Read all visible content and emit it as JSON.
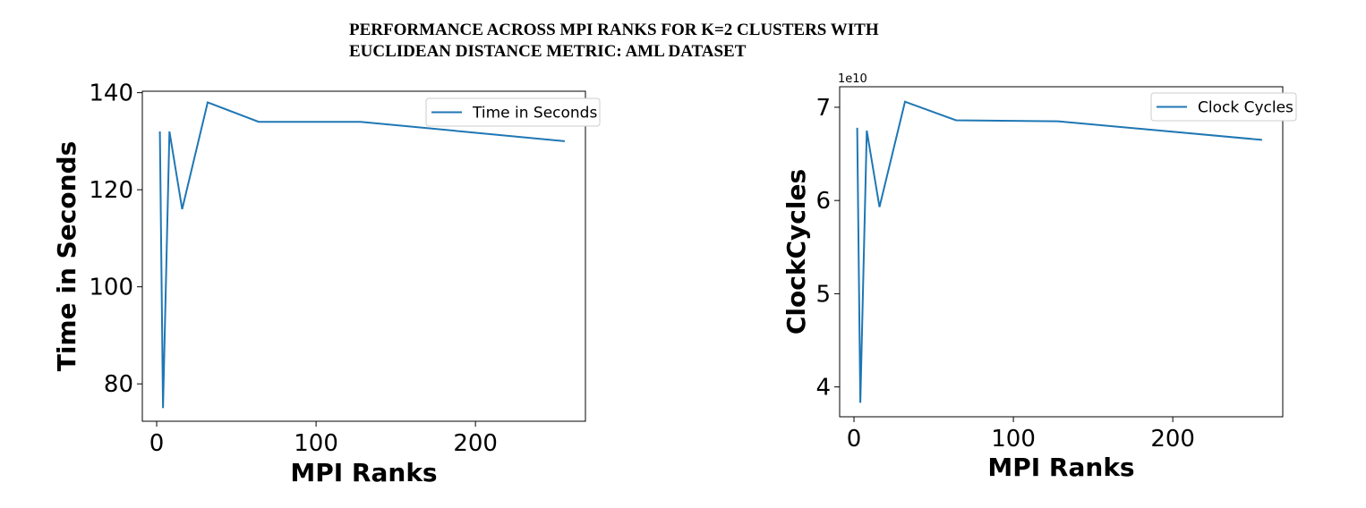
{
  "figure": {
    "title_line1": "PERFORMANCE ACROSS MPI RANKS FOR K=2 CLUSTERS WITH",
    "title_line2": "EUCLIDEAN DISTANCE METRIC: AML DATASET"
  },
  "colors": {
    "series": "#1f77b4",
    "axis": "#000000"
  },
  "chart_data": [
    {
      "type": "line",
      "xlabel": "MPI Ranks",
      "ylabel": "Time in Seconds",
      "legend_position": "top-right",
      "grid": false,
      "xlim": [
        -9,
        269
      ],
      "ylim": [
        72.3,
        140.3
      ],
      "xticks": [
        0,
        100,
        200
      ],
      "yticks": [
        80,
        100,
        120,
        140
      ],
      "ytick_labels": [
        "80",
        "100",
        "120",
        "140"
      ],
      "offset_label": "",
      "series": [
        {
          "name": "Time in Seconds",
          "x": [
            2,
            4,
            8,
            16,
            32,
            64,
            128,
            256
          ],
          "y": [
            132,
            75,
            132,
            116,
            138,
            134,
            134,
            130
          ]
        }
      ]
    },
    {
      "type": "line",
      "xlabel": "MPI Ranks",
      "ylabel": "ClockCycles",
      "legend_position": "top-right",
      "grid": false,
      "xlim": [
        -9,
        269
      ],
      "ylim": [
        36800000000.0,
        72200000000.0
      ],
      "xticks": [
        0,
        100,
        200
      ],
      "yticks": [
        40000000000.0,
        50000000000.0,
        60000000000.0,
        70000000000.0
      ],
      "ytick_labels": [
        "4",
        "5",
        "6",
        "7"
      ],
      "offset_label": "1e10",
      "series": [
        {
          "name": "Clock Cycles",
          "x": [
            2,
            4,
            8,
            16,
            32,
            64,
            128,
            256
          ],
          "y": [
            67800000000.0,
            38300000000.0,
            67500000000.0,
            59300000000.0,
            70600000000.0,
            68600000000.0,
            68500000000.0,
            66500000000.0
          ]
        }
      ]
    }
  ]
}
